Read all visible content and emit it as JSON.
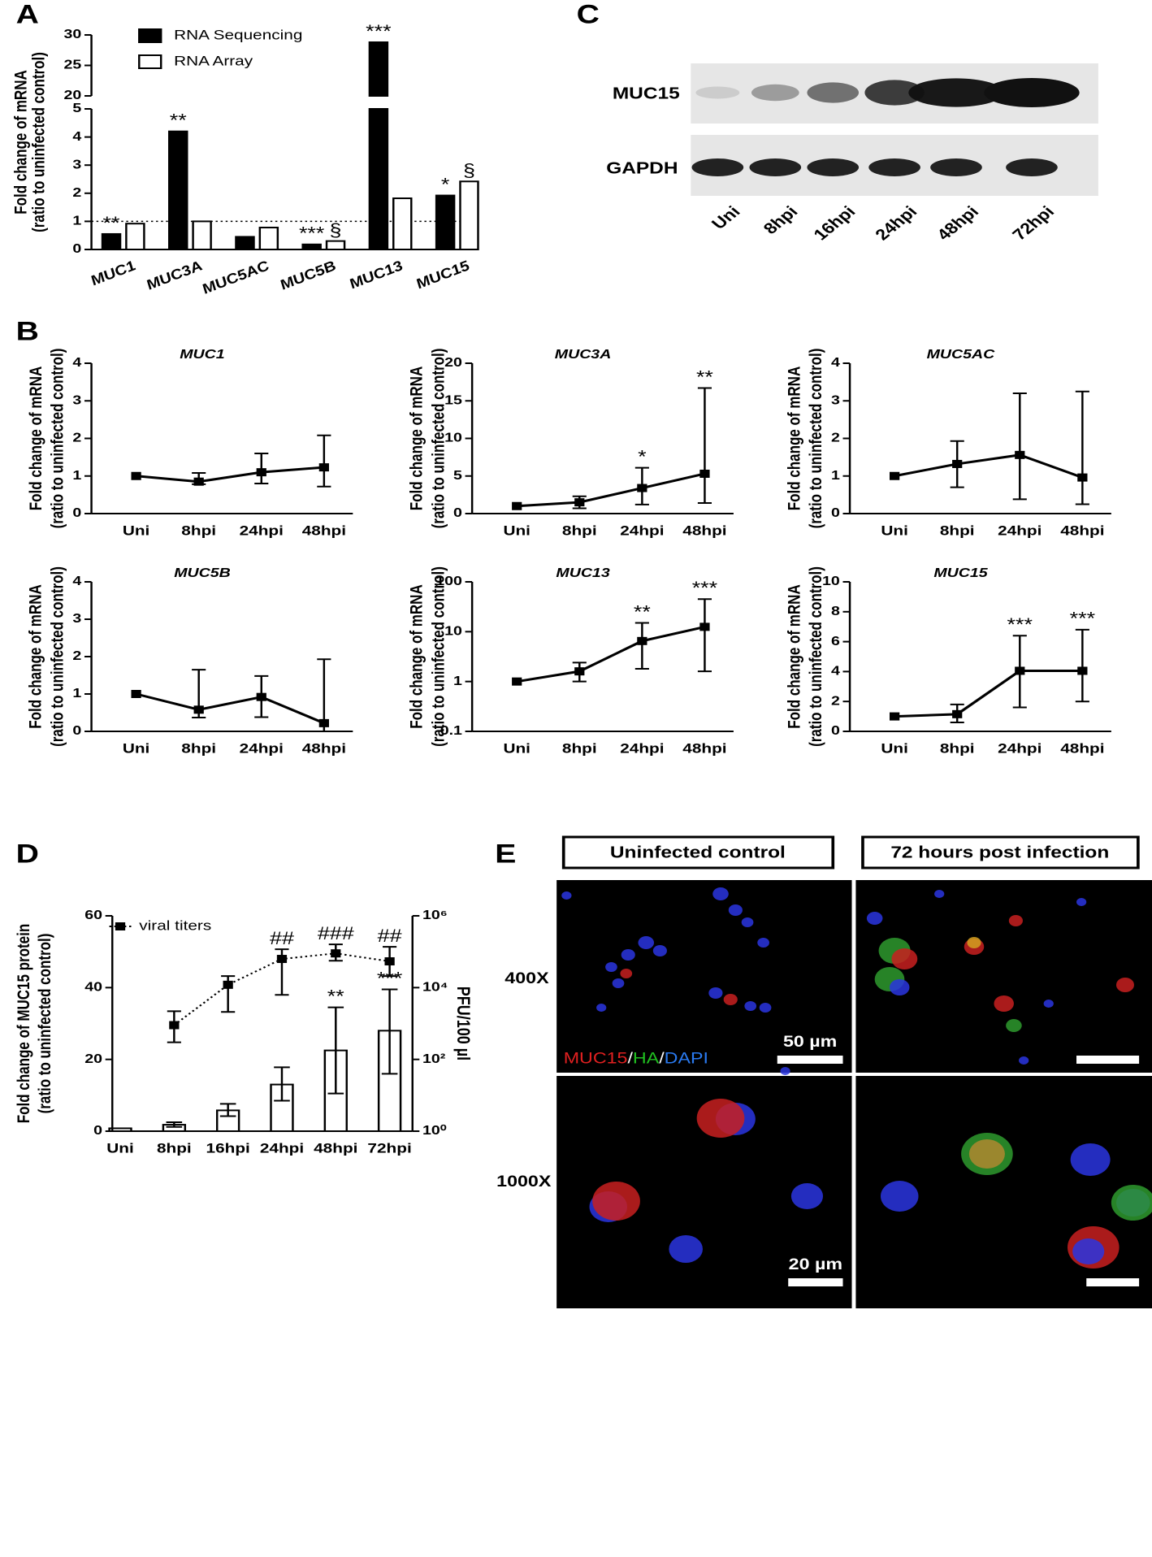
{
  "panel_labels": [
    "A",
    "B",
    "C",
    "D",
    "E"
  ],
  "chart_data": [
    {
      "type": "bar",
      "categories": [
        "MUC1",
        "MUC3A",
        "MUC5AC",
        "MUC5B",
        "MUC13",
        "MUC15"
      ],
      "series": [
        {
          "name": "RNA Sequencing",
          "color": "#000000",
          "values": [
            0.55,
            4.2,
            0.45,
            0.18,
            28.8,
            1.92
          ],
          "annotations": [
            "**",
            "**",
            null,
            "***",
            "***",
            "*"
          ]
        },
        {
          "name": "RNA Array",
          "color": "#ffffff",
          "values": [
            0.92,
            1.0,
            0.78,
            0.3,
            1.82,
            2.42
          ],
          "annotations": [
            null,
            null,
            null,
            "§",
            null,
            "§"
          ]
        }
      ],
      "ylim": [
        0,
        30
      ],
      "yticks": [
        0,
        1,
        2,
        3,
        4,
        5,
        20,
        25,
        30
      ],
      "axis_break": [
        5,
        20
      ],
      "hline": 1,
      "y_label": [
        "Fold change of mRNA",
        "(ratio to uninfected control)"
      ]
    },
    {
      "type": "line",
      "title": "MUC1",
      "categories": [
        "Uni",
        "8hpi",
        "24hpi",
        "48hpi"
      ],
      "series": [
        {
          "color": "#000000",
          "values": [
            1,
            0.85,
            1.1,
            1.23
          ],
          "lower": [
            null,
            0.78,
            0.8,
            0.72
          ],
          "upper": [
            null,
            1.08,
            1.6,
            2.08
          ],
          "annotations": [
            null,
            null,
            null,
            null
          ]
        }
      ],
      "ylim": [
        0,
        4
      ],
      "yticks": [
        0,
        1,
        2,
        3,
        4
      ],
      "y_label": [
        "Fold change of mRNA",
        "(ratio to uninfected control)"
      ]
    },
    {
      "type": "line",
      "title": "MUC3A",
      "categories": [
        "Uni",
        "8hpi",
        "24hpi",
        "48hpi"
      ],
      "series": [
        {
          "color": "#000000",
          "values": [
            1,
            1.5,
            3.4,
            5.3
          ],
          "lower": [
            null,
            0.7,
            1.2,
            1.4
          ],
          "upper": [
            null,
            2.3,
            6.1,
            16.7
          ],
          "annotations": [
            null,
            null,
            "*",
            "**"
          ]
        }
      ],
      "ylim": [
        0,
        20
      ],
      "yticks": [
        0,
        5,
        10,
        15,
        20
      ],
      "y_label": [
        "Fold change of mRNA",
        "(ratio to uninfected control)"
      ]
    },
    {
      "type": "line",
      "title": "MUC5AC",
      "categories": [
        "Uni",
        "8hpi",
        "24hpi",
        "48hpi"
      ],
      "series": [
        {
          "color": "#000000",
          "values": [
            1,
            1.32,
            1.56,
            0.96
          ],
          "lower": [
            null,
            0.7,
            0.38,
            0.25
          ],
          "upper": [
            null,
            1.93,
            3.2,
            3.25
          ],
          "annotations": [
            null,
            null,
            null,
            null
          ]
        }
      ],
      "ylim": [
        0,
        4
      ],
      "yticks": [
        0,
        1,
        2,
        3,
        4
      ],
      "y_label": [
        "Fold change of mRNA",
        "(ratio to uninfected control)"
      ]
    },
    {
      "type": "line",
      "title": "MUC5B",
      "categories": [
        "Uni",
        "8hpi",
        "24hpi",
        "48hpi"
      ],
      "series": [
        {
          "color": "#000000",
          "values": [
            1,
            0.58,
            0.92,
            0.22
          ],
          "lower": [
            null,
            0.37,
            0.38,
            0
          ],
          "upper": [
            null,
            1.65,
            1.48,
            1.93
          ],
          "annotations": [
            null,
            null,
            null,
            null
          ]
        }
      ],
      "ylim": [
        0,
        4
      ],
      "yticks": [
        0,
        1,
        2,
        3,
        4
      ],
      "y_label": [
        "Fold change of mRNA",
        "(ratio to uninfected control)"
      ]
    },
    {
      "type": "line",
      "title": "MUC13",
      "categories": [
        "Uni",
        "8hpi",
        "24hpi",
        "48hpi"
      ],
      "series": [
        {
          "color": "#000000",
          "values": [
            1,
            1.6,
            6.5,
            12.5
          ],
          "lower": [
            null,
            1.0,
            1.8,
            1.6
          ],
          "upper": [
            null,
            2.4,
            15,
            45
          ],
          "annotations": [
            null,
            null,
            "**",
            "***"
          ]
        }
      ],
      "ylim": [
        0.1,
        100
      ],
      "ylog": true,
      "yticks": [
        0.1,
        1,
        10,
        100
      ],
      "y_label": [
        "Fold change of mRNA",
        "(ratio to uninfected control)"
      ]
    },
    {
      "type": "line",
      "title": "MUC15",
      "categories": [
        "Uni",
        "8hpi",
        "24hpi",
        "48hpi"
      ],
      "series": [
        {
          "color": "#000000",
          "values": [
            1,
            1.15,
            4.05,
            4.05
          ],
          "lower": [
            null,
            0.6,
            1.6,
            2.0
          ],
          "upper": [
            null,
            1.8,
            6.4,
            6.8
          ],
          "annotations": [
            null,
            null,
            "***",
            "***"
          ]
        }
      ],
      "ylim": [
        0,
        10
      ],
      "yticks": [
        0,
        2,
        4,
        6,
        8,
        10
      ],
      "y_label": [
        "Fold change of mRNA",
        "(ratio to uninfected control)"
      ]
    },
    {
      "type": "bar",
      "categories": [
        "Uni",
        "8hpi",
        "16hpi",
        "24hpi",
        "48hpi",
        "72hpi"
      ],
      "series": [
        {
          "color": "#ffffff",
          "values": [
            0.8,
            1.8,
            5.8,
            13,
            22.5,
            28
          ],
          "lower": [
            null,
            1.2,
            4.2,
            8.5,
            10.5,
            16
          ],
          "upper": [
            null,
            2.5,
            7.6,
            17.8,
            34.5,
            39.5
          ],
          "annotations": [
            null,
            null,
            null,
            null,
            "**",
            "***"
          ]
        },
        {
          "name": "viral titers",
          "axis": "y2",
          "color": "#000000",
          "line_style": "dotted",
          "values": [
            null,
            900,
            12000,
            63000,
            90000,
            54000
          ],
          "lower": [
            null,
            300,
            2100,
            6300,
            56000,
            21000
          ],
          "upper": [
            null,
            2200,
            21000,
            117000,
            160000,
            137000
          ],
          "annotations": [
            null,
            null,
            null,
            "##",
            "###",
            "##"
          ]
        }
      ],
      "ylim": [
        0,
        60
      ],
      "yticks": [
        0,
        20,
        40,
        60
      ],
      "y2lim": [
        1,
        1000000
      ],
      "y2log": true,
      "y2ticks": [
        {
          "value": 1,
          "label": "10⁰"
        },
        {
          "value": 100,
          "label": "10²"
        },
        {
          "value": 10000,
          "label": "10⁴"
        },
        {
          "value": 1000000,
          "label": "10⁶"
        }
      ],
      "y_label": [
        "Fold change of MUC15 protein",
        "(ratio to uninfected control)"
      ],
      "y2_label": "PFU/100 µl"
    }
  ],
  "blot": {
    "rows": [
      "MUC15",
      "GAPDH"
    ],
    "lanes": [
      "Uni",
      "8hpi",
      "16hpi",
      "24hpi",
      "48hpi",
      "72hpi"
    ]
  },
  "micrographs": {
    "columns": [
      "Uninfected control",
      "72 hours post infection"
    ],
    "rows": [
      "400X",
      "1000X"
    ],
    "scale_bars": [
      "50 µm",
      "20 µm"
    ],
    "stain_legend": [
      "MUC15",
      "/",
      "HA",
      "/",
      "DAPI"
    ]
  }
}
